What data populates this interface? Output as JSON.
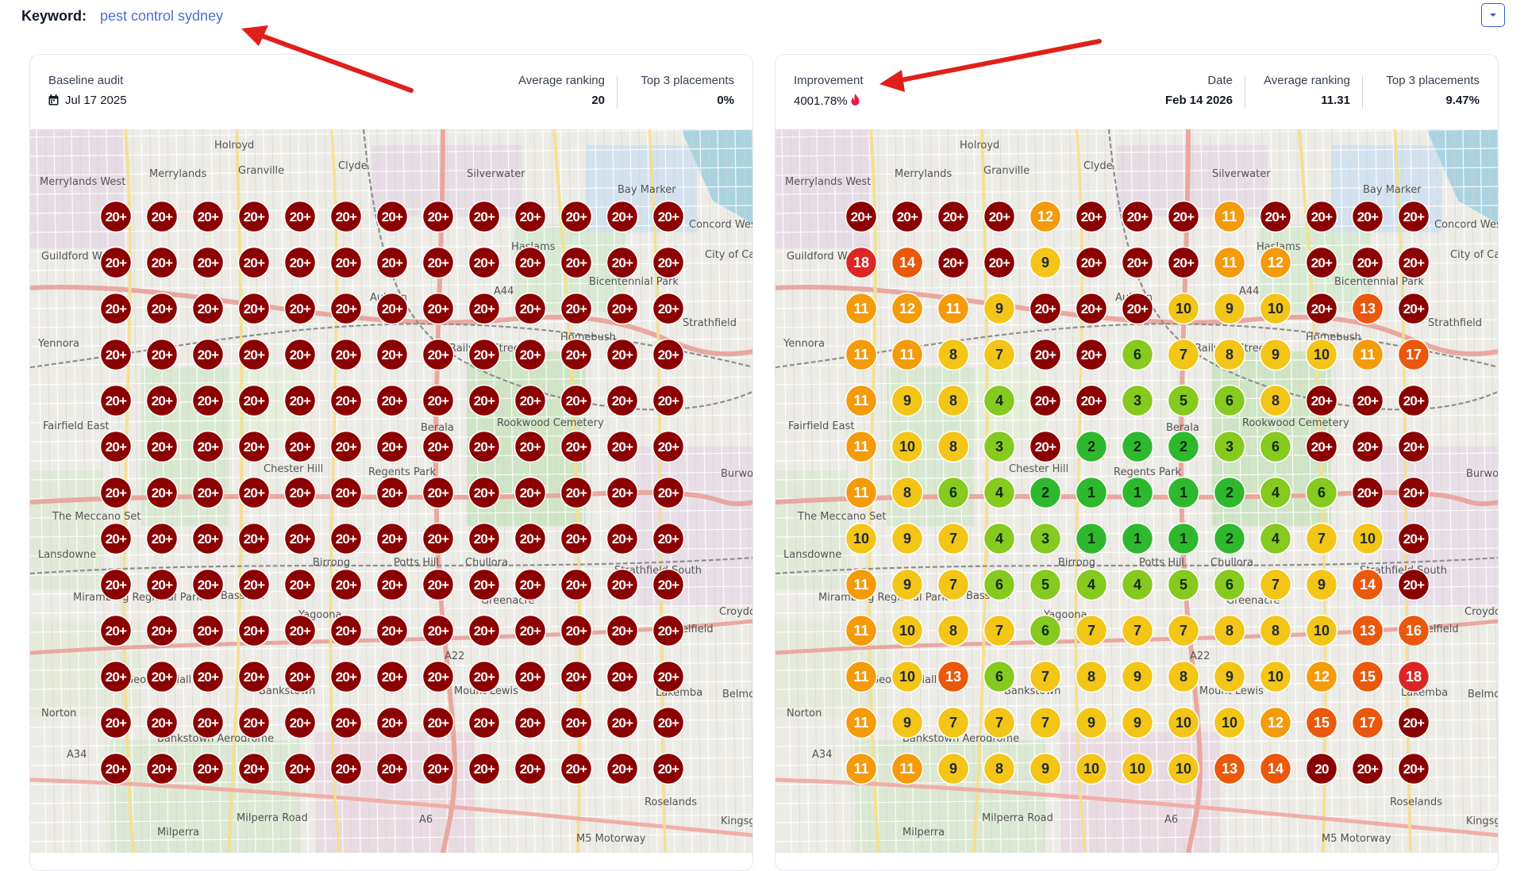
{
  "keyword": {
    "label": "Keyword:",
    "value": "pest control sydney"
  },
  "left_card": {
    "title": "Baseline audit",
    "date": "Jul 17 2025",
    "avg_label": "Average ranking",
    "avg_value": "20",
    "top3_label": "Top 3 placements",
    "top3_value": "0%"
  },
  "right_card": {
    "title": "Improvement",
    "improvement_value": "4001.78%",
    "date_label": "Date",
    "date_value": "Feb 14 2026",
    "avg_label": "Average ranking",
    "avg_value": "11.31",
    "top3_label": "Top 3 placements",
    "top3_value": "9.47%"
  },
  "map_labels": [
    "Holroyd",
    "Merrylands",
    "Merrylands West",
    "Granville",
    "Clyde",
    "Silverwater",
    "Bay Marker",
    "Concord West",
    "Guildford West",
    "Auburn",
    "Haslams",
    "A44",
    "Bicentennial Park",
    "City of Canada Bay Council",
    "Strathfield",
    "Yennora",
    "Homebush",
    "Railway Street",
    "Fairfield East",
    "Berala",
    "Rookwood Cemetery",
    "Chester Hill",
    "Regents Park",
    "The Meccano Set",
    "Lansdowne",
    "Birrong",
    "Potts Hill",
    "Chullora",
    "Strathfield South",
    "Miramberg Regional Park",
    "Bass Hill",
    "Greenacre",
    "Yagoona",
    "A22",
    "Belfield",
    "Georges Hall",
    "Bankstown",
    "Mount Lewis",
    "Lakemba",
    "Belmore",
    "Norton",
    "Bankstown Aerodrome",
    "A34",
    "Roselands",
    "A6",
    "Milperra",
    "Milperra Road",
    "M5 Motorway",
    "Kingsgrove",
    "Croydon Park",
    "Burwood"
  ],
  "colors": {
    "rank_20_plus": "#8b0000",
    "rank_1_2": "#2eb82e",
    "rank_3_6": "#86c91f",
    "rank_7_10": "#f3c517",
    "rank_11_12": "#f49b0b",
    "rank_13_17": "#ea580c",
    "rank_18_19": "#dc2626",
    "accent": "#3b5bdb",
    "annotation_arrow": "#e0201b"
  },
  "grid_left": [
    [
      "20+",
      "20+",
      "20+",
      "20+",
      "20+",
      "20+",
      "20+",
      "20+",
      "20+",
      "20+",
      "20+",
      "20+",
      "20+"
    ],
    [
      "20+",
      "20+",
      "20+",
      "20+",
      "20+",
      "20+",
      "20+",
      "20+",
      "20+",
      "20+",
      "20+",
      "20+",
      "20+"
    ],
    [
      "20+",
      "20+",
      "20+",
      "20+",
      "20+",
      "20+",
      "20+",
      "20+",
      "20+",
      "20+",
      "20+",
      "20+",
      "20+"
    ],
    [
      "20+",
      "20+",
      "20+",
      "20+",
      "20+",
      "20+",
      "20+",
      "20+",
      "20+",
      "20+",
      "20+",
      "20+",
      "20+"
    ],
    [
      "20+",
      "20+",
      "20+",
      "20+",
      "20+",
      "20+",
      "20+",
      "20+",
      "20+",
      "20+",
      "20+",
      "20+",
      "20+"
    ],
    [
      "20+",
      "20+",
      "20+",
      "20+",
      "20+",
      "20+",
      "20+",
      "20+",
      "20+",
      "20+",
      "20+",
      "20+",
      "20+"
    ],
    [
      "20+",
      "20+",
      "20+",
      "20+",
      "20+",
      "20+",
      "20+",
      "20+",
      "20+",
      "20+",
      "20+",
      "20+",
      "20+"
    ],
    [
      "20+",
      "20+",
      "20+",
      "20+",
      "20+",
      "20+",
      "20+",
      "20+",
      "20+",
      "20+",
      "20+",
      "20+",
      "20+"
    ],
    [
      "20+",
      "20+",
      "20+",
      "20+",
      "20+",
      "20+",
      "20+",
      "20+",
      "20+",
      "20+",
      "20+",
      "20+",
      "20+"
    ],
    [
      "20+",
      "20+",
      "20+",
      "20+",
      "20+",
      "20+",
      "20+",
      "20+",
      "20+",
      "20+",
      "20+",
      "20+",
      "20+"
    ],
    [
      "20+",
      "20+",
      "20+",
      "20+",
      "20+",
      "20+",
      "20+",
      "20+",
      "20+",
      "20+",
      "20+",
      "20+",
      "20+"
    ],
    [
      "20+",
      "20+",
      "20+",
      "20+",
      "20+",
      "20+",
      "20+",
      "20+",
      "20+",
      "20+",
      "20+",
      "20+",
      "20+"
    ],
    [
      "20+",
      "20+",
      "20+",
      "20+",
      "20+",
      "20+",
      "20+",
      "20+",
      "20+",
      "20+",
      "20+",
      "20+",
      "20+"
    ]
  ],
  "grid_right": [
    [
      "20+",
      "20+",
      "20+",
      "20+",
      "12",
      "20+",
      "20+",
      "20+",
      "11",
      "20+",
      "20+",
      "20+",
      "20+"
    ],
    [
      "18",
      "14",
      "20+",
      "20+",
      "9",
      "20+",
      "20+",
      "20+",
      "11",
      "12",
      "20+",
      "20+",
      "20+"
    ],
    [
      "11",
      "12",
      "11",
      "9",
      "20+",
      "20+",
      "20+",
      "10",
      "9",
      "10",
      "20+",
      "13",
      "20+"
    ],
    [
      "11",
      "11",
      "8",
      "7",
      "20+",
      "20+",
      "6",
      "7",
      "8",
      "9",
      "10",
      "11",
      "17"
    ],
    [
      "11",
      "9",
      "8",
      "4",
      "20+",
      "20+",
      "3",
      "5",
      "6",
      "8",
      "20+",
      "20+",
      "20+"
    ],
    [
      "11",
      "10",
      "8",
      "3",
      "20+",
      "2",
      "2",
      "2",
      "3",
      "6",
      "20+",
      "20+",
      "20+"
    ],
    [
      "11",
      "8",
      "6",
      "4",
      "2",
      "1",
      "1",
      "1",
      "2",
      "4",
      "6",
      "20+",
      "20+"
    ],
    [
      "10",
      "9",
      "7",
      "4",
      "3",
      "1",
      "1",
      "1",
      "2",
      "4",
      "7",
      "10",
      "20+"
    ],
    [
      "11",
      "9",
      "7",
      "6",
      "5",
      "4",
      "4",
      "5",
      "6",
      "7",
      "9",
      "14",
      "20+"
    ],
    [
      "11",
      "10",
      "8",
      "7",
      "6",
      "7",
      "7",
      "7",
      "8",
      "8",
      "10",
      "13",
      "16"
    ],
    [
      "11",
      "10",
      "13",
      "6",
      "7",
      "8",
      "9",
      "8",
      "9",
      "10",
      "12",
      "15",
      "18"
    ],
    [
      "11",
      "9",
      "7",
      "7",
      "7",
      "9",
      "9",
      "10",
      "10",
      "12",
      "15",
      "17",
      "20+"
    ],
    [
      "11",
      "11",
      "9",
      "8",
      "9",
      "10",
      "10",
      "10",
      "13",
      "14",
      "20",
      "20+",
      "20+"
    ]
  ]
}
